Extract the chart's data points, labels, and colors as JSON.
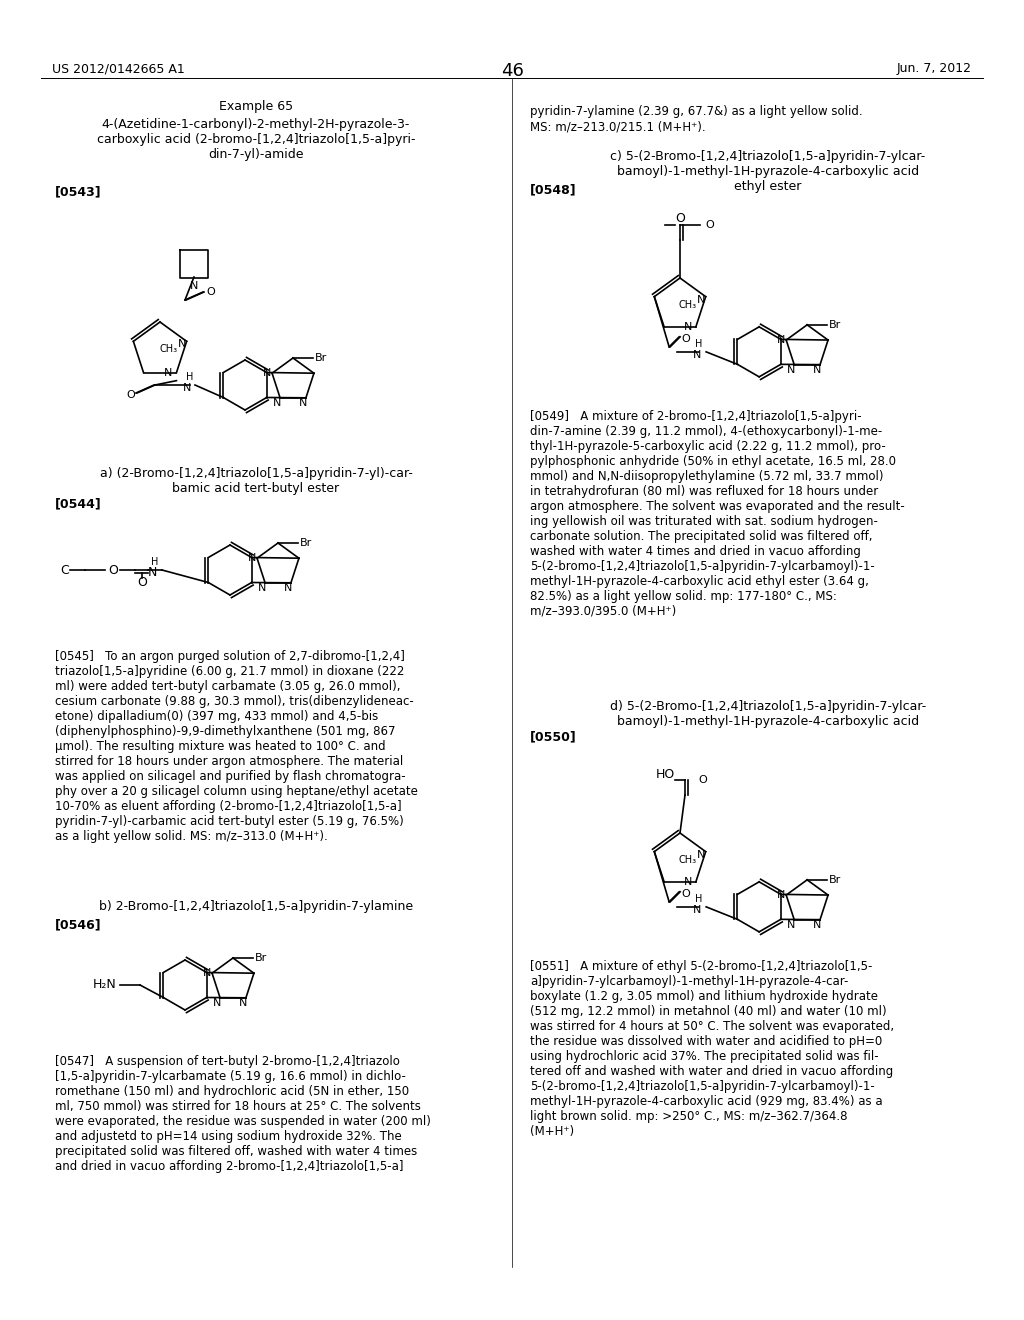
{
  "page_number": "46",
  "patent_number": "US 2012/0142665 A1",
  "patent_date": "Jun. 7, 2012",
  "background_color": "#ffffff",
  "text_color": "#000000",
  "font_size_body": 9,
  "font_size_header": 9,
  "font_size_page_num": 14,
  "left_column": {
    "example_title": "Example 65",
    "compound_title": "4-(Azetidine-1-carbonyl)-2-methyl-2H-pyrazole-3-\ncarboxylic acid (2-bromo-[1,2,4]triazolo[1,5-a]pyri-\ndin-7-yl)-amide",
    "tag1": "[0543]",
    "sub_title_a": "a) (2-Bromo-[1,2,4]triazolo[1,5-a]pyridin-7-yl)-car-\nbamic acid tert-butyl ester",
    "tag2": "[0544]",
    "body_text_545": "[0545]   To an argon purged solution of 2,7-dibromo-[1,2,4]\ntriazolo[1,5-a]pyridine (6.00 g, 21.7 mmol) in dioxane (222\nml) were added tert-butyl carbamate (3.05 g, 26.0 mmol),\ncesium carbonate (9.88 g, 30.3 mmol), tris(dibenzylideneac-\netone) dipalladium(0) (397 mg, 433 mmol) and 4,5-bis\n(diphenylphosphino)-9,9-dimethylxanthene (501 mg, 867\nμmol). The resulting mixture was heated to 100° C. and\nstirred for 18 hours under argon atmosphere. The material\nwas applied on silicagel and purified by flash chromatogra-\nphy over a 20 g silicagel column using heptane/ethyl acetate\n10-70% as eluent affording (2-bromo-[1,2,4]triazolo[1,5-a]\npyridin-7-yl)-carbamic acid tert-butyl ester (5.19 g, 76.5%)\nas a light yellow solid. MS: m/z–313.0 (M+H⁺).",
    "sub_title_b": "b) 2-Bromo-[1,2,4]triazolo[1,5-a]pyridin-7-ylamine",
    "tag3": "[0546]",
    "body_text_547": "[0547]   A suspension of tert-butyl 2-bromo-[1,2,4]triazolo\n[1,5-a]pyridin-7-ylcarbamate (5.19 g, 16.6 mmol) in dichlo-\nromethane (150 ml) and hydrochloric acid (5N in ether, 150\nml, 750 mmol) was stirred for 18 hours at 25° C. The solvents\nwere evaporated, the residue was suspended in water (200 ml)\nand adjustetd to pH=14 using sodium hydroxide 32%. The\nprecipitated solid was filtered off, washed with water 4 times\nand dried in vacuo affording 2-bromo-[1,2,4]triazolo[1,5-a]"
  },
  "right_column": {
    "body_text_right_top": "pyridin-7-ylamine (2.39 g, 67.7&) as a light yellow solid.\nMS: m/z–213.0/215.1 (M+H⁺).",
    "sub_title_c": "c) 5-(2-Bromo-[1,2,4]triazolo[1,5-a]pyridin-7-ylcar-\nbamoyl)-1-methyl-1H-pyrazole-4-carboxylic acid\nethyl ester",
    "tag4": "[0548]",
    "body_text_549": "[0549]   A mixture of 2-bromo-[1,2,4]triazolo[1,5-a]pyri-\ndin-7-amine (2.39 g, 11.2 mmol), 4-(ethoxycarbonyl)-1-me-\nthyl-1H-pyrazole-5-carboxylic acid (2.22 g, 11.2 mmol), pro-\npylphosphonic anhydride (50% in ethyl acetate, 16.5 ml, 28.0\nmmol) and N,N-diisopropylethylamine (5.72 ml, 33.7 mmol)\nin tetrahydrofuran (80 ml) was refluxed for 18 hours under\nargon atmosphere. The solvent was evaporated and the result-\ning yellowish oil was triturated with sat. sodium hydrogen-\ncarbonate solution. The precipitated solid was filtered off,\nwashed with water 4 times and dried in vacuo affording\n5-(2-bromo-[1,2,4]triazolo[1,5-a]pyridin-7-ylcarbamoyl)-1-\nmethyl-1H-pyrazole-4-carboxylic acid ethyl ester (3.64 g,\n82.5%) as a light yellow solid. mp: 177-180° C., MS:\nm/z–393.0/395.0 (M+H⁺)",
    "sub_title_d": "d) 5-(2-Bromo-[1,2,4]triazolo[1,5-a]pyridin-7-ylcar-\nbamoyl)-1-methyl-1H-pyrazole-4-carboxylic acid",
    "tag5": "[0550]",
    "body_text_551": "[0551]   A mixture of ethyl 5-(2-bromo-[1,2,4]triazolo[1,5-\na]pyridin-7-ylcarbamoyl)-1-methyl-1H-pyrazole-4-car-\nboxylate (1.2 g, 3.05 mmol) and lithium hydroxide hydrate\n(512 mg, 12.2 mmol) in metahnol (40 ml) and water (10 ml)\nwas stirred for 4 hours at 50° C. The solvent was evaporated,\nthe residue was dissolved with water and acidified to pH=0\nusing hydrochloric acid 37%. The precipitated solid was fil-\ntered off and washed with water and dried in vacuo affording\n5-(2-bromo-[1,2,4]triazolo[1,5-a]pyridin-7-ylcarbamoyl)-1-\nmethyl-1H-pyrazole-4-carboxylic acid (929 mg, 83.4%) as a\nlight brown solid. mp: >250° C., MS: m/z–362.7/364.8\n(M+H⁺)"
  }
}
